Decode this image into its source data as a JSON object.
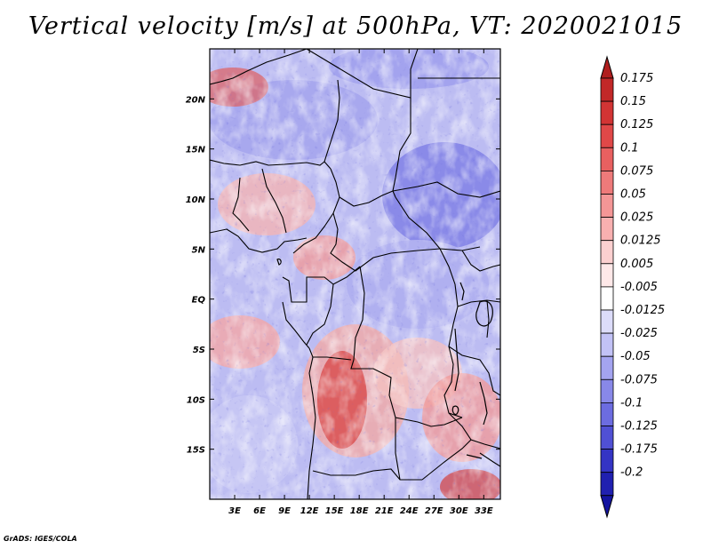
{
  "title": "Vertical velocity [m/s] at 500hPa, VT: 2020021015",
  "footer": "GrADS: IGES/COLA",
  "map": {
    "lon_range": [
      0,
      35
    ],
    "lat_range": [
      -20,
      25
    ],
    "lon_ticks": [
      {
        "value": 3,
        "label": "3E"
      },
      {
        "value": 6,
        "label": "6E"
      },
      {
        "value": 9,
        "label": "9E"
      },
      {
        "value": 12,
        "label": "12E"
      },
      {
        "value": 15,
        "label": "15E"
      },
      {
        "value": 18,
        "label": "18E"
      },
      {
        "value": 21,
        "label": "21E"
      },
      {
        "value": 24,
        "label": "24E"
      },
      {
        "value": 27,
        "label": "27E"
      },
      {
        "value": 30,
        "label": "30E"
      },
      {
        "value": 33,
        "label": "33E"
      }
    ],
    "lat_ticks": [
      {
        "value": 20,
        "label": "20N"
      },
      {
        "value": 15,
        "label": "15N"
      },
      {
        "value": 10,
        "label": "10N"
      },
      {
        "value": 5,
        "label": "5N"
      },
      {
        "value": 0,
        "label": "EQ"
      },
      {
        "value": -5,
        "label": "5S"
      },
      {
        "value": -10,
        "label": "10S"
      },
      {
        "value": -15,
        "label": "15S"
      }
    ]
  },
  "colorbar": {
    "levels": [
      {
        "label": "0.175",
        "color": "#c22828"
      },
      {
        "label": "0.15",
        "color": "#d23434"
      },
      {
        "label": "0.125",
        "color": "#e04848"
      },
      {
        "label": "0.1",
        "color": "#e86060"
      },
      {
        "label": "0.075",
        "color": "#ee7a7a"
      },
      {
        "label": "0.05",
        "color": "#f49696"
      },
      {
        "label": "0.025",
        "color": "#f8b0b0"
      },
      {
        "label": "0.0125",
        "color": "#fcd0d0"
      },
      {
        "label": "0.005",
        "color": "#fee8e8"
      },
      {
        "label": "-0.005",
        "color": "#ffffff"
      },
      {
        "label": "-0.0125",
        "color": "#dcdcfa"
      },
      {
        "label": "-0.025",
        "color": "#c2c2f6"
      },
      {
        "label": "-0.05",
        "color": "#a4a4f0"
      },
      {
        "label": "-0.075",
        "color": "#8888e8"
      },
      {
        "label": "-0.1",
        "color": "#6c6ce0"
      },
      {
        "label": "-0.125",
        "color": "#5050d4"
      },
      {
        "label": "-0.175",
        "color": "#3434c4"
      },
      {
        "label": "-0.2",
        "color": "#2020b0"
      }
    ],
    "top_color": "#b01e1e",
    "bottom_color": "#1414a0"
  }
}
